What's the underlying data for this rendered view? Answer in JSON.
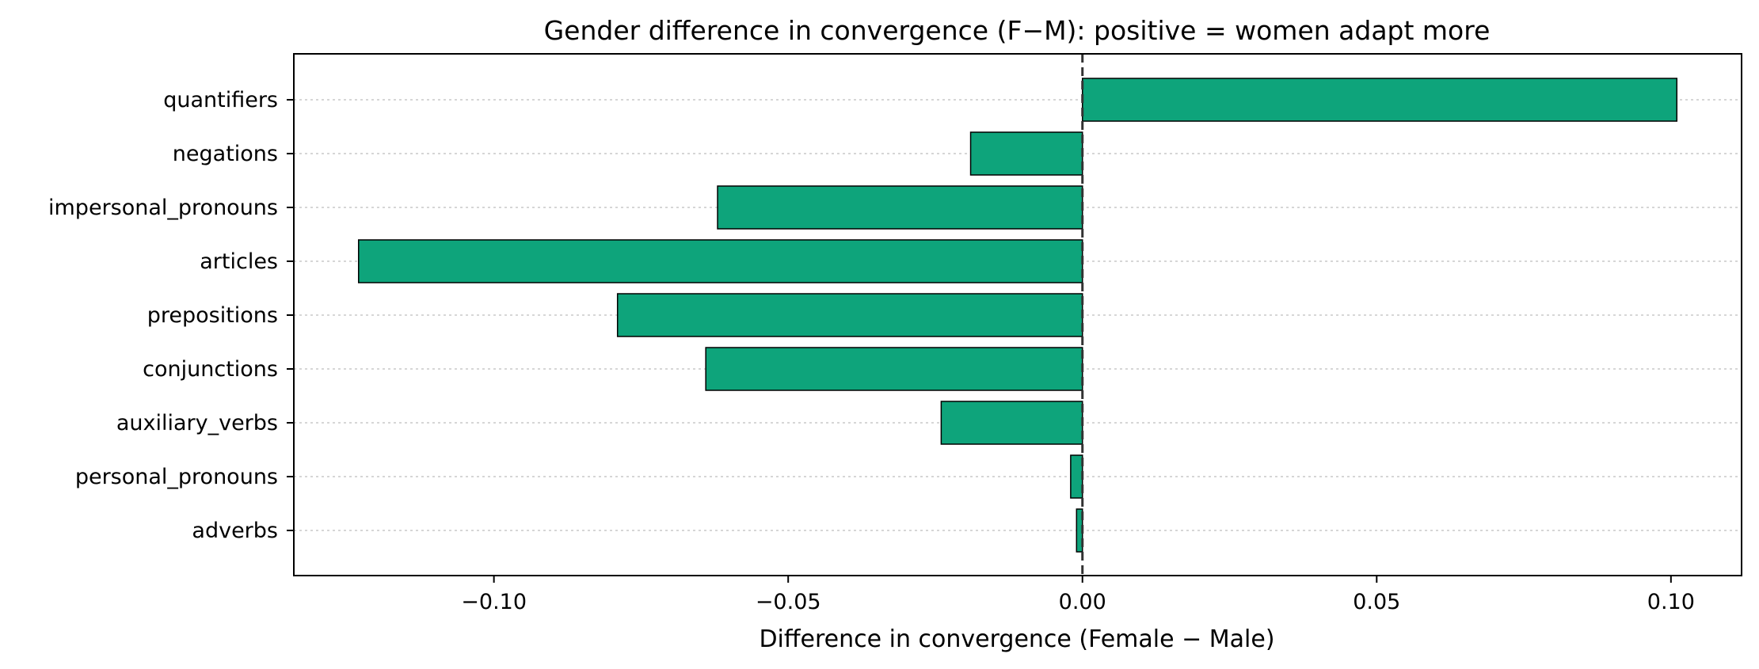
{
  "chart_data": {
    "type": "bar",
    "orientation": "horizontal",
    "title": "Gender difference in convergence (F−M): positive = women adapt more",
    "xlabel": "Difference in convergence (Female − Male)",
    "ylabel": "",
    "categories": [
      "quantifiers",
      "negations",
      "impersonal_pronouns",
      "articles",
      "prepositions",
      "conjunctions",
      "auxiliary_verbs",
      "personal_pronouns",
      "adverbs"
    ],
    "values": [
      0.101,
      -0.019,
      -0.062,
      -0.123,
      -0.079,
      -0.064,
      -0.024,
      -0.002,
      -0.001
    ],
    "xlim": [
      -0.134,
      0.112
    ],
    "xticks": [
      -0.1,
      -0.05,
      0.0,
      0.05,
      0.1
    ],
    "xtick_labels": [
      "−0.10",
      "−0.05",
      "0.00",
      "0.05",
      "0.10"
    ],
    "reference_line": 0,
    "grid": "horizontal dotted",
    "bar_color": "#0ea47b",
    "edge_color": "#000000"
  }
}
